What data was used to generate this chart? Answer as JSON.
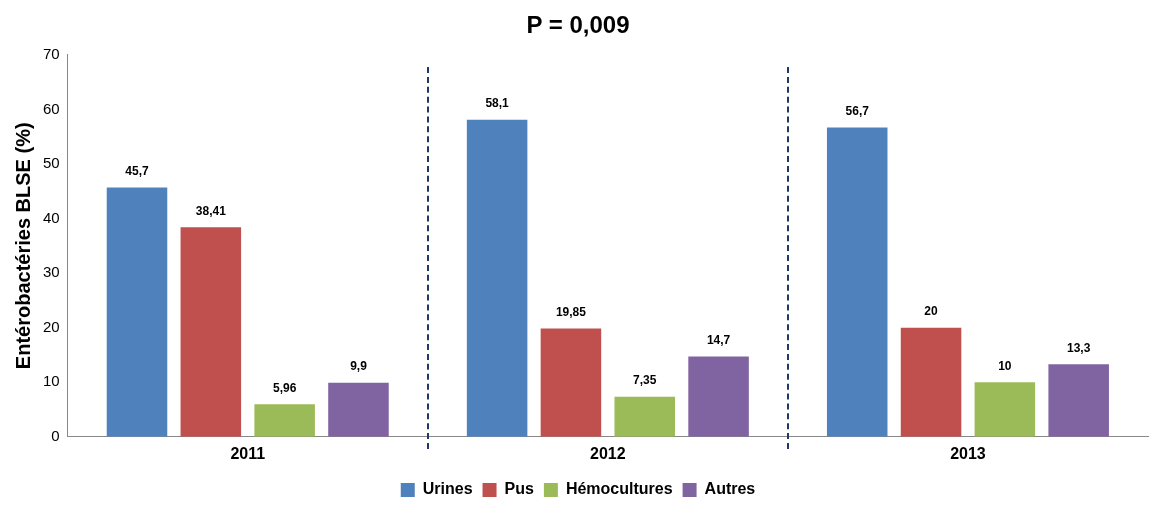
{
  "chart_data": {
    "type": "bar",
    "title": "P = 0,009",
    "ylabel": "Entérobactéries BLSE (%)",
    "categories": [
      "2011",
      "2012",
      "2013"
    ],
    "series": [
      {
        "name": "Urines",
        "color": "#4f81bd",
        "values": [
          45.7,
          58.1,
          56.7
        ],
        "value_labels": [
          "45,7",
          "58,1",
          "56,7"
        ]
      },
      {
        "name": "Pus",
        "color": "#c0504d",
        "values": [
          38.41,
          19.85,
          20
        ],
        "value_labels": [
          "38,41",
          "19,85",
          "20"
        ]
      },
      {
        "name": "Hémocultures",
        "color": "#9bbb59",
        "values": [
          5.96,
          7.35,
          10
        ],
        "value_labels": [
          "5,96",
          "7,35",
          "10"
        ]
      },
      {
        "name": "Autres",
        "color": "#8064a2",
        "values": [
          9.9,
          14.7,
          13.3
        ],
        "value_labels": [
          "9,9",
          "14,7",
          "13,3"
        ]
      }
    ],
    "ylim": [
      0,
      70
    ],
    "yticks": [
      0,
      10,
      20,
      30,
      40,
      50,
      60,
      70
    ],
    "grid": false,
    "legend": "bottom"
  }
}
